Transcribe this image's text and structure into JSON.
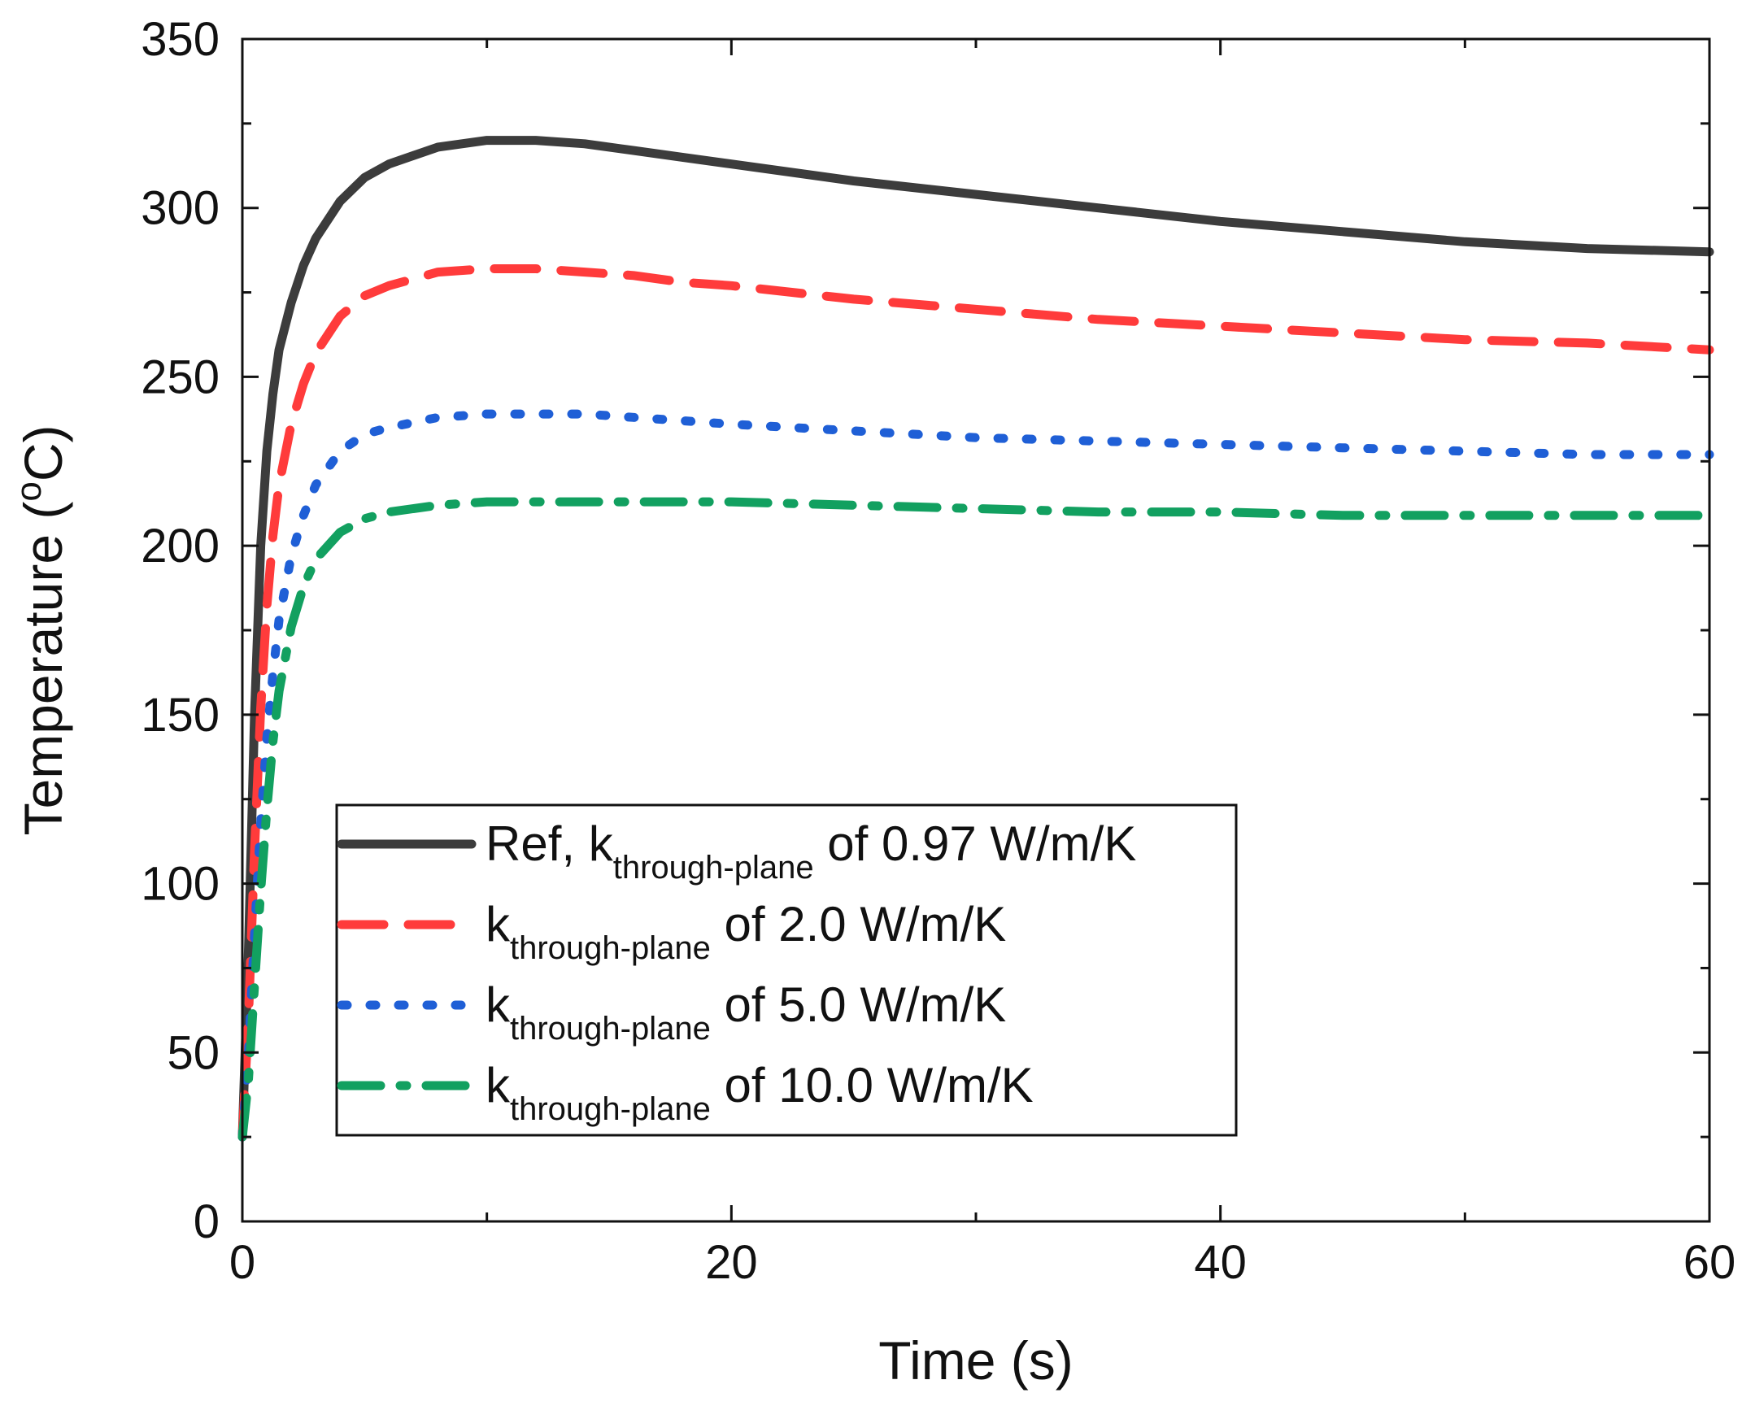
{
  "chart_data": {
    "type": "line",
    "title": "",
    "xlabel": "Time (s)",
    "ylabel_main": "Temperature (",
    "ylabel_sup": "o",
    "ylabel_tail": "C)",
    "xlim": [
      0,
      60
    ],
    "ylim": [
      0,
      350
    ],
    "x_ticks": [
      0,
      20,
      40,
      60
    ],
    "x_tick_labels": [
      "0",
      "20",
      "40",
      "60"
    ],
    "x_minor_ticks": [
      10,
      30,
      50
    ],
    "y_ticks": [
      0,
      50,
      100,
      150,
      200,
      250,
      300,
      350
    ],
    "y_tick_labels": [
      "0",
      "50",
      "100",
      "150",
      "200",
      "250",
      "300",
      "350"
    ],
    "y_minor_ticks": [
      25,
      75,
      125,
      175,
      225,
      275,
      325
    ],
    "grid": false,
    "legend_position": "bottom-center",
    "series": [
      {
        "name": "Ref, kthrough-plane of 0.97 W/m/K",
        "legend_prefix": "Ref, k",
        "legend_sub": "through-plane",
        "legend_suffix": " of 0.97 W/m/K",
        "color": "#3c3c3c",
        "style": "solid",
        "x": [
          0,
          0.25,
          0.5,
          0.75,
          1,
          1.25,
          1.5,
          2,
          2.5,
          3,
          4,
          5,
          6,
          8,
          10,
          12,
          14,
          16,
          18,
          20,
          25,
          30,
          35,
          40,
          45,
          50,
          55,
          60
        ],
        "y": [
          25,
          80,
          150,
          200,
          228,
          245,
          258,
          272,
          283,
          291,
          302,
          309,
          313,
          318,
          320,
          320,
          319,
          317,
          315,
          313,
          308,
          304,
          300,
          296,
          293,
          290,
          288,
          287
        ]
      },
      {
        "name": "kthrough-plane of 2.0 W/m/K",
        "legend_prefix": "k",
        "legend_sub": "through-plane",
        "legend_suffix": " of 2.0 W/m/K",
        "color": "#ff3b3b",
        "style": "dash",
        "x": [
          0,
          0.25,
          0.5,
          0.75,
          1,
          1.25,
          1.5,
          2,
          2.5,
          3,
          4,
          5,
          6,
          8,
          10,
          12,
          14,
          16,
          18,
          20,
          25,
          30,
          35,
          40,
          45,
          50,
          55,
          60
        ],
        "y": [
          25,
          60,
          110,
          152,
          182,
          203,
          218,
          236,
          248,
          257,
          268,
          274,
          277,
          281,
          282,
          282,
          281,
          280,
          278,
          277,
          273,
          270,
          267,
          265,
          263,
          261,
          260,
          258
        ]
      },
      {
        "name": "kthrough-plane of 5.0 W/m/K",
        "legend_prefix": "k",
        "legend_sub": "through-plane",
        "legend_suffix": " of 5.0 W/m/K",
        "color": "#1f5fd6",
        "style": "dot",
        "x": [
          0,
          0.25,
          0.5,
          0.75,
          1,
          1.25,
          1.5,
          2,
          2.5,
          3,
          4,
          5,
          6,
          8,
          10,
          12,
          14,
          16,
          18,
          20,
          25,
          30,
          35,
          40,
          45,
          50,
          55,
          60
        ],
        "y": [
          25,
          50,
          85,
          118,
          143,
          162,
          178,
          197,
          209,
          218,
          228,
          233,
          235,
          238,
          239,
          239,
          239,
          238,
          237,
          236,
          234,
          232,
          231,
          230,
          229,
          228,
          227,
          227
        ]
      },
      {
        "name": "kthrough-plane of 10.0 W/m/K",
        "legend_prefix": "k",
        "legend_sub": "through-plane",
        "legend_suffix": " of 10.0 W/m/K",
        "color": "#12a060",
        "style": "dashdot",
        "x": [
          0,
          0.25,
          0.5,
          0.75,
          1,
          1.25,
          1.5,
          2,
          2.5,
          3,
          4,
          5,
          6,
          8,
          10,
          12,
          14,
          16,
          18,
          20,
          25,
          30,
          35,
          40,
          45,
          50,
          55,
          60
        ],
        "y": [
          25,
          42,
          70,
          98,
          122,
          142,
          157,
          176,
          188,
          196,
          204,
          208,
          210,
          212,
          213,
          213,
          213,
          213,
          213,
          213,
          212,
          211,
          210,
          210,
          209,
          209,
          209,
          209
        ]
      }
    ]
  }
}
